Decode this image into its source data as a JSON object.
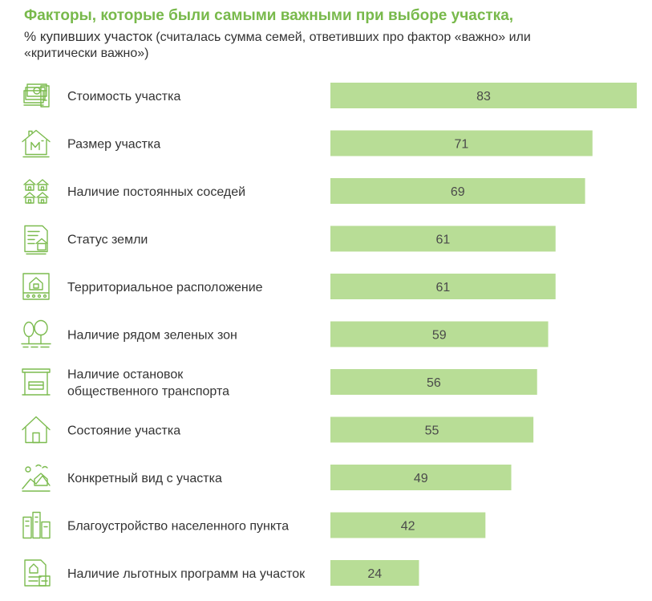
{
  "header": {
    "title": "Факторы, которые были самыми важными при выборе участка,",
    "subtitle_lead": "% купивших участок",
    "subtitle_rest": " (считалась сумма семей, ответивших про фактор «важно» или «критически важно»)"
  },
  "colors": {
    "bar": "#b8dd96",
    "title": "#78b94b",
    "icon": "#7cbb4f",
    "text": "#333333"
  },
  "chart_data": {
    "type": "bar",
    "orientation": "horizontal",
    "title": "Факторы, которые были самыми важными при выборе участка,",
    "subtitle": "% купивших участок (считалась сумма семей, ответивших про фактор «важно» или «критически важно»)",
    "xlabel": "",
    "ylabel": "",
    "xlim": [
      0,
      83
    ],
    "grid": false,
    "legend": "none",
    "categories": [
      [
        "Стоимость участка"
      ],
      [
        "Размер участка"
      ],
      [
        "Наличие постоянных соседей"
      ],
      [
        "Статус земли"
      ],
      [
        "Территориальное расположение"
      ],
      [
        "Наличие рядом зеленых зон"
      ],
      [
        "Наличие остановок",
        "общественного транспорта"
      ],
      [
        "Состояние участка"
      ],
      [
        "Конкретный вид с участка"
      ],
      [
        "Благоустройство населенного пункта"
      ],
      [
        "Наличие льготных программ на участок"
      ]
    ],
    "values": [
      83,
      71,
      69,
      61,
      61,
      59,
      56,
      55,
      49,
      42,
      24
    ],
    "icons": [
      "money-icon",
      "house-area-icon",
      "neighbors-icon",
      "land-document-icon",
      "location-map-icon",
      "trees-icon",
      "bus-stop-icon",
      "house-icon",
      "landscape-view-icon",
      "town-icon",
      "benefit-document-icon"
    ]
  }
}
